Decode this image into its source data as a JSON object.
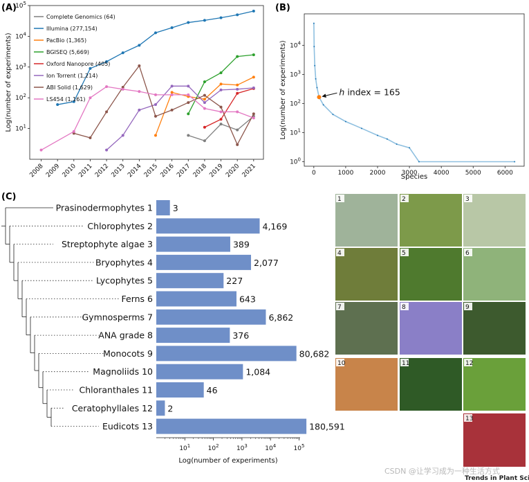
{
  "chart_data": [
    {
      "type": "line",
      "panel": "(A)",
      "xlabel": "",
      "ylabel": "Log(number of experiments)",
      "yscale": "log",
      "ylim": [
        1,
        100000
      ],
      "x": [
        2008,
        2009,
        2010,
        2011,
        2012,
        2013,
        2014,
        2015,
        2016,
        2017,
        2018,
        2019,
        2020,
        2021
      ],
      "ytick_labels": [
        "10^1",
        "10^2",
        "10^3",
        "10^4",
        "10^5"
      ],
      "legend_position": "top-left",
      "series": [
        {
          "name": "Complete Genomics (64)",
          "color": "#7f7f7f",
          "points": [
            [
              2017,
              6
            ],
            [
              2018,
              4
            ],
            [
              2019,
              14
            ],
            [
              2020,
              9
            ],
            [
              2021,
              25
            ]
          ]
        },
        {
          "name": "Illumina (277,154)",
          "color": "#1f77b4",
          "points": [
            [
              2009,
              60
            ],
            [
              2010,
              75
            ],
            [
              2011,
              900
            ],
            [
              2012,
              1500
            ],
            [
              2013,
              2900
            ],
            [
              2014,
              5100
            ],
            [
              2015,
              13000
            ],
            [
              2016,
              19000
            ],
            [
              2017,
              28000
            ],
            [
              2018,
              33000
            ],
            [
              2019,
              40000
            ],
            [
              2020,
              50000
            ],
            [
              2021,
              66000
            ]
          ]
        },
        {
          "name": "PacBio (1,365)",
          "color": "#ff7f0e",
          "points": [
            [
              2015,
              6
            ],
            [
              2016,
              150
            ],
            [
              2017,
              110
            ],
            [
              2018,
              90
            ],
            [
              2019,
              280
            ],
            [
              2020,
              260
            ],
            [
              2021,
              470
            ]
          ]
        },
        {
          "name": "BGISEQ (5,669)",
          "color": "#2ca02c",
          "points": [
            [
              2017,
              30
            ],
            [
              2018,
              330
            ],
            [
              2019,
              650
            ],
            [
              2020,
              2200
            ],
            [
              2021,
              2500
            ]
          ]
        },
        {
          "name": "Oxford Nanopore (405)",
          "color": "#d62728",
          "points": [
            [
              2018,
              11
            ],
            [
              2019,
              20
            ],
            [
              2020,
              140
            ],
            [
              2021,
              200
            ]
          ]
        },
        {
          "name": "Ion Torrent (1,214)",
          "color": "#9467bd",
          "points": [
            [
              2012,
              2
            ],
            [
              2013,
              6
            ],
            [
              2014,
              40
            ],
            [
              2015,
              60
            ],
            [
              2016,
              240
            ],
            [
              2017,
              240
            ],
            [
              2018,
              70
            ],
            [
              2019,
              180
            ],
            [
              2020,
              190
            ],
            [
              2021,
              210
            ]
          ]
        },
        {
          "name": "ABI Solid (1,629)",
          "color": "#8c564b",
          "points": [
            [
              2010,
              7
            ],
            [
              2011,
              5
            ],
            [
              2012,
              35
            ],
            [
              2013,
              220
            ],
            [
              2014,
              1100
            ],
            [
              2015,
              25
            ],
            [
              2016,
              40
            ],
            [
              2017,
              70
            ],
            [
              2018,
              120
            ],
            [
              2019,
              50
            ],
            [
              2020,
              3
            ],
            [
              2021,
              30
            ]
          ]
        },
        {
          "name": "LS454 (1,161)",
          "color": "#e377c2",
          "points": [
            [
              2008,
              2
            ],
            [
              2010,
              8
            ],
            [
              2011,
              100
            ],
            [
              2012,
              230
            ],
            [
              2013,
              190
            ],
            [
              2014,
              160
            ],
            [
              2015,
              125
            ],
            [
              2016,
              125
            ],
            [
              2017,
              125
            ],
            [
              2018,
              45
            ],
            [
              2019,
              35
            ],
            [
              2020,
              35
            ],
            [
              2021,
              22
            ]
          ]
        }
      ]
    },
    {
      "type": "scatter",
      "panel": "(B)",
      "xlabel": "Species",
      "ylabel": "Log(number of experiments)",
      "yscale": "log",
      "xlim": [
        -300,
        6600
      ],
      "ylim": [
        0.7,
        120000
      ],
      "xticks": [
        0,
        1000,
        2000,
        3000,
        4000,
        5000,
        6000
      ],
      "ytick_labels": [
        "10^0",
        "10^1",
        "10^2",
        "10^3",
        "10^4"
      ],
      "curve": [
        [
          1,
          57000
        ],
        [
          10,
          9000
        ],
        [
          30,
          2000
        ],
        [
          60,
          700
        ],
        [
          100,
          350
        ],
        [
          165,
          165
        ],
        [
          300,
          90
        ],
        [
          600,
          42
        ],
        [
          1000,
          24
        ],
        [
          1500,
          14
        ],
        [
          2000,
          8
        ],
        [
          2300,
          6
        ],
        [
          2600,
          4
        ],
        [
          3000,
          3
        ],
        [
          3300,
          1
        ],
        [
          6300,
          1
        ]
      ],
      "annotation": {
        "prefix": "h",
        "text": " index = 165",
        "x": 165,
        "y": 165
      },
      "color": "#1f77b4",
      "highlight_color": "#ff7f0e"
    },
    {
      "type": "bar",
      "panel": "(C)",
      "orientation": "horizontal",
      "xscale": "log",
      "xlabel": "Log(number of experiments)",
      "xtick_labels": [
        "10^1",
        "10^2",
        "10^3",
        "10^4",
        "10^5"
      ],
      "bar_color": "#6f8fc8",
      "categories": [
        "Prasinodermophytes 1",
        "Chlorophytes 2",
        "Streptophyte algae 3",
        "Bryophytes 4",
        "Lycophytes 5",
        "Ferns 6",
        "Gymnosperms 7",
        "ANA grade 8",
        "Monocots 9",
        "Magnoliids 10",
        "Chloranthales 11",
        "Ceratophyllales 12",
        "Eudicots 13"
      ],
      "values": [
        3,
        4169,
        389,
        2077,
        227,
        643,
        6862,
        376,
        80682,
        1084,
        46,
        2,
        180591
      ],
      "value_labels": [
        "3",
        "4,169",
        "389",
        "2,077",
        "227",
        "643",
        "6,862",
        "376",
        "80,682",
        "1,084",
        "46",
        "2",
        "180,591"
      ]
    }
  ],
  "photos": [
    {
      "num": "1",
      "fill": "#9fb39a"
    },
    {
      "num": "2",
      "fill": "#7d9a4a"
    },
    {
      "num": "3",
      "fill": "#b8c7a6"
    },
    {
      "num": "4",
      "fill": "#6f7d3a"
    },
    {
      "num": "5",
      "fill": "#4f7a2e"
    },
    {
      "num": "6",
      "fill": "#8fb37a"
    },
    {
      "num": "7",
      "fill": "#5e7050"
    },
    {
      "num": "8",
      "fill": "#8a7fc7"
    },
    {
      "num": "9",
      "fill": "#3d5a2e"
    },
    {
      "num": "10",
      "fill": "#c8844a"
    },
    {
      "num": "11",
      "fill": "#2f5a26"
    },
    {
      "num": "12",
      "fill": "#6aa03a"
    },
    {
      "num": "13",
      "fill": "#a8323a"
    }
  ],
  "watermark": "CSDN @让学习成为一种生活方式",
  "journal": "Trends in Plant Science"
}
